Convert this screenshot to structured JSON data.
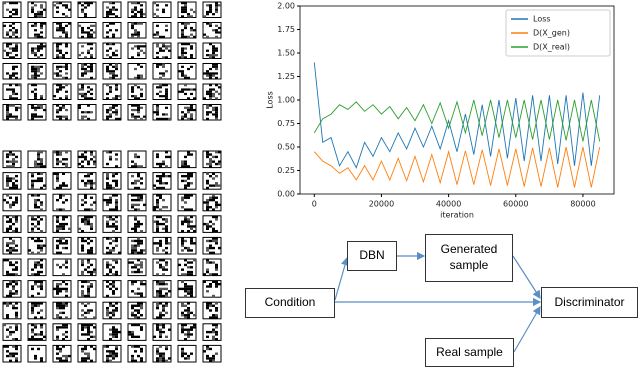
{
  "chart_data": {
    "type": "line",
    "x": [
      0,
      2500,
      5000,
      7500,
      10000,
      12500,
      15000,
      17500,
      20000,
      22500,
      25000,
      27500,
      30000,
      32500,
      35000,
      37500,
      40000,
      42500,
      45000,
      47500,
      50000,
      52500,
      55000,
      57500,
      60000,
      62500,
      65000,
      67500,
      70000,
      72500,
      75000,
      77500,
      80000,
      82500,
      85000
    ],
    "series": [
      {
        "name": "Loss",
        "color": "#1f77b4",
        "values": [
          1.4,
          0.55,
          0.6,
          0.3,
          0.45,
          0.28,
          0.55,
          0.4,
          0.6,
          0.45,
          0.65,
          0.48,
          0.7,
          0.5,
          0.72,
          0.48,
          0.78,
          0.45,
          0.85,
          0.42,
          0.95,
          0.4,
          1.0,
          0.38,
          1.02,
          0.35,
          1.05,
          0.35,
          1.05,
          0.32,
          1.05,
          0.3,
          1.08,
          0.3,
          1.05
        ]
      },
      {
        "name": "D(X_gen)",
        "color": "#ff7f0e",
        "values": [
          0.45,
          0.35,
          0.3,
          0.22,
          0.28,
          0.15,
          0.3,
          0.15,
          0.35,
          0.15,
          0.38,
          0.14,
          0.4,
          0.13,
          0.42,
          0.12,
          0.45,
          0.1,
          0.46,
          0.1,
          0.47,
          0.09,
          0.48,
          0.09,
          0.48,
          0.08,
          0.49,
          0.08,
          0.49,
          0.07,
          0.5,
          0.07,
          0.5,
          0.07,
          0.5
        ]
      },
      {
        "name": "D(X_real)",
        "color": "#2ca02c",
        "values": [
          0.65,
          0.8,
          0.85,
          0.95,
          0.9,
          0.98,
          0.88,
          0.95,
          0.85,
          0.93,
          0.8,
          0.92,
          0.78,
          0.95,
          0.75,
          0.97,
          0.7,
          0.98,
          0.65,
          1.0,
          0.62,
          1.0,
          0.6,
          1.0,
          0.6,
          1.0,
          0.58,
          1.0,
          0.58,
          1.0,
          0.57,
          1.0,
          0.56,
          1.0,
          0.56
        ]
      }
    ],
    "xlabel": "iteration",
    "ylabel": "Loss",
    "xlim": [
      -4250,
      89250
    ],
    "xticks": [
      0,
      20000,
      40000,
      60000,
      80000
    ],
    "ylim": [
      0,
      2
    ],
    "yticks": [
      {
        "value": 0,
        "label": "0.00"
      },
      {
        "value": 0.25,
        "label": "0.25"
      },
      {
        "value": 0.5,
        "label": "0.50"
      },
      {
        "value": 0.75,
        "label": "0.75"
      },
      {
        "value": 1,
        "label": "1.00"
      },
      {
        "value": 1.25,
        "label": "1.25"
      },
      {
        "value": 1.5,
        "label": "1.50"
      },
      {
        "value": 1.75,
        "label": "1.75"
      },
      {
        "value": 2,
        "label": "2.00"
      }
    ],
    "legend": "upper right"
  },
  "diagram": {
    "nodes": [
      "DBN",
      "Generated sample",
      "Condition",
      "Discriminator",
      "Real sample"
    ]
  }
}
